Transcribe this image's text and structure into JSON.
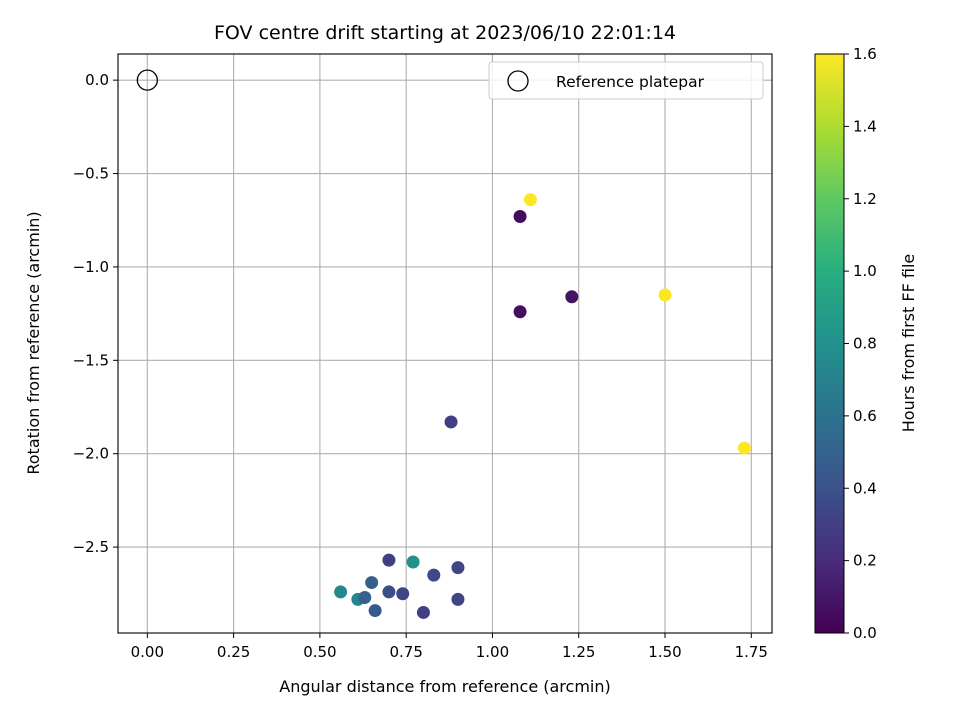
{
  "chart_data": {
    "type": "scatter",
    "title": "FOV centre drift starting at 2023/06/10 22:01:14",
    "xlabel": "Angular distance from reference (arcmin)",
    "ylabel": "Rotation from reference (arcmin)",
    "colorbar_label": "Hours from first FF file",
    "xlim": [
      -0.085,
      1.81
    ],
    "ylim": [
      -2.96,
      0.14
    ],
    "x_ticks": [
      "0.00",
      "0.25",
      "0.50",
      "0.75",
      "1.00",
      "1.25",
      "1.50",
      "1.75"
    ],
    "y_ticks": [
      "0.0",
      "−0.5",
      "−1.0",
      "−1.5",
      "−2.0",
      "−2.5"
    ],
    "colorbar_ticks": [
      "0.0",
      "0.2",
      "0.4",
      "0.6",
      "0.8",
      "1.0",
      "1.2",
      "1.4",
      "1.6"
    ],
    "color_range": [
      0,
      1.6
    ],
    "colormap": "viridis",
    "grid": true,
    "legend_position": "top-right",
    "reference": {
      "name": "Reference platepar",
      "x": 0.0,
      "y": 0.0
    },
    "points": [
      {
        "x": 1.08,
        "y": -0.73,
        "c": 0.05
      },
      {
        "x": 1.23,
        "y": -1.16,
        "c": 0.08
      },
      {
        "x": 1.08,
        "y": -1.24,
        "c": 0.06
      },
      {
        "x": 1.11,
        "y": -0.64,
        "c": 1.6
      },
      {
        "x": 1.5,
        "y": -1.15,
        "c": 1.6
      },
      {
        "x": 1.73,
        "y": -1.97,
        "c": 1.6
      },
      {
        "x": 0.88,
        "y": -1.83,
        "c": 0.3
      },
      {
        "x": 0.7,
        "y": -2.57,
        "c": 0.3
      },
      {
        "x": 0.77,
        "y": -2.58,
        "c": 0.8
      },
      {
        "x": 0.9,
        "y": -2.61,
        "c": 0.33
      },
      {
        "x": 0.83,
        "y": -2.65,
        "c": 0.35
      },
      {
        "x": 0.65,
        "y": -2.69,
        "c": 0.48
      },
      {
        "x": 0.56,
        "y": -2.74,
        "c": 0.75
      },
      {
        "x": 0.7,
        "y": -2.74,
        "c": 0.38
      },
      {
        "x": 0.74,
        "y": -2.75,
        "c": 0.33
      },
      {
        "x": 0.61,
        "y": -2.78,
        "c": 0.72
      },
      {
        "x": 0.63,
        "y": -2.77,
        "c": 0.5
      },
      {
        "x": 0.9,
        "y": -2.78,
        "c": 0.33
      },
      {
        "x": 0.66,
        "y": -2.84,
        "c": 0.45
      },
      {
        "x": 0.8,
        "y": -2.85,
        "c": 0.3
      }
    ]
  }
}
